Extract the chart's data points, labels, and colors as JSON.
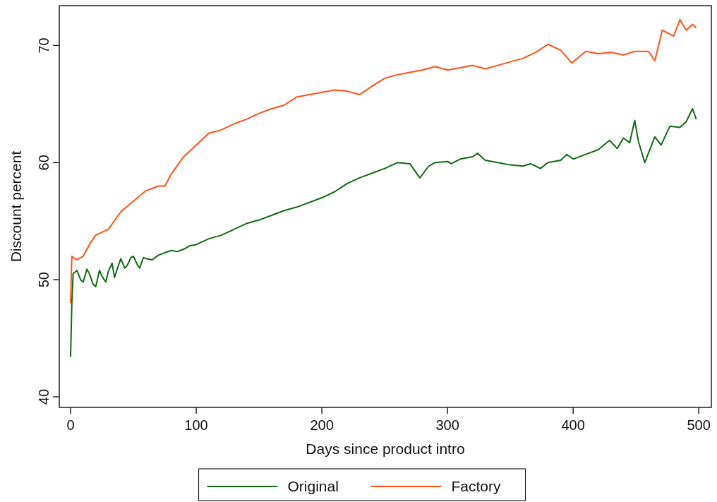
{
  "chart_data": {
    "type": "line",
    "xlabel": "Days since product intro",
    "ylabel": "Discount percent",
    "xlim": [
      -9,
      510
    ],
    "ylim": [
      39.1,
      73.4
    ],
    "xticks": [
      0,
      100,
      200,
      300,
      400,
      500
    ],
    "yticks": [
      40,
      50,
      60,
      70
    ],
    "grid": false,
    "legend": "bottom",
    "line_style": "solid",
    "marker": "none",
    "series": [
      {
        "name": "Original",
        "color": "#0f6b0f",
        "x": [
          0,
          1,
          2,
          5,
          8,
          10,
          13,
          15,
          18,
          20,
          23,
          25,
          28,
          30,
          33,
          35,
          38,
          40,
          43,
          45,
          48,
          50,
          53,
          55,
          58,
          60,
          65,
          70,
          75,
          80,
          85,
          90,
          95,
          100,
          110,
          120,
          130,
          140,
          150,
          160,
          170,
          180,
          190,
          200,
          210,
          220,
          230,
          240,
          250,
          260,
          270,
          278,
          285,
          290,
          300,
          303,
          310,
          320,
          324,
          330,
          340,
          350,
          360,
          366,
          374,
          380,
          390,
          395,
          400,
          410,
          420,
          429,
          435,
          440,
          445,
          449,
          452,
          457,
          465,
          470,
          477,
          485,
          490,
          495,
          498
        ],
        "values": [
          43.4,
          48,
          50.5,
          50.8,
          50,
          49.8,
          50.9,
          50.5,
          49.6,
          49.4,
          50.8,
          50.3,
          49.8,
          50.7,
          51.4,
          50.2,
          51.2,
          51.8,
          51,
          51.2,
          51.9,
          52,
          51.3,
          51,
          51.9,
          51.8,
          51.7,
          52.1,
          52.3,
          52.5,
          52.4,
          52.6,
          52.9,
          53,
          53.5,
          53.8,
          54.3,
          54.8,
          55.1,
          55.5,
          55.9,
          56.2,
          56.6,
          57,
          57.5,
          58.2,
          58.7,
          59.1,
          59.5,
          60,
          59.9,
          58.7,
          59.7,
          60,
          60.1,
          59.9,
          60.3,
          60.5,
          60.8,
          60.2,
          60,
          59.8,
          59.7,
          59.9,
          59.5,
          60,
          60.2,
          60.7,
          60.3,
          60.7,
          61.1,
          61.9,
          61.2,
          62.1,
          61.7,
          63.6,
          61.8,
          60,
          62.2,
          61.5,
          63.1,
          63,
          63.5,
          64.6,
          63.7
        ]
      },
      {
        "name": "Factory",
        "color": "#ff5014",
        "x": [
          0,
          1,
          5,
          10,
          15,
          20,
          30,
          40,
          50,
          60,
          70,
          75,
          80,
          90,
          100,
          110,
          120,
          130,
          140,
          150,
          160,
          170,
          180,
          190,
          200,
          210,
          220,
          230,
          241,
          250,
          260,
          270,
          280,
          290,
          300,
          310,
          320,
          330,
          340,
          350,
          360,
          370,
          380,
          390,
          399,
          410,
          420,
          430,
          440,
          449,
          460,
          465,
          471,
          480,
          485,
          490,
          495,
          498
        ],
        "values": [
          48,
          52,
          51.7,
          52,
          53,
          53.8,
          54.3,
          55.8,
          56.7,
          57.6,
          58,
          58,
          59,
          60.5,
          61.5,
          62.5,
          62.8,
          63.3,
          63.7,
          64.2,
          64.6,
          64.9,
          65.6,
          65.8,
          66,
          66.2,
          66.1,
          65.8,
          66.6,
          67.2,
          67.5,
          67.7,
          67.9,
          68.2,
          67.9,
          68.1,
          68.3,
          68,
          68.3,
          68.6,
          68.9,
          69.4,
          70.1,
          69.6,
          68.5,
          69.5,
          69.3,
          69.4,
          69.2,
          69.5,
          69.5,
          68.7,
          71.3,
          70.8,
          72.2,
          71.3,
          71.8,
          71.5
        ]
      }
    ]
  }
}
